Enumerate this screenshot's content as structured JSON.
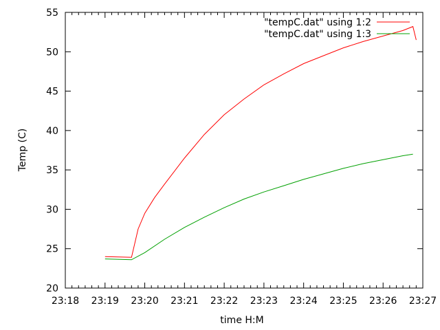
{
  "chart_data": {
    "type": "line",
    "title": "",
    "xlabel": "time H:M",
    "ylabel": "Temp (C)",
    "xlim": [
      "23:18",
      "23:27"
    ],
    "ylim": [
      20,
      55
    ],
    "xticks": [
      "23:18",
      "23:19",
      "23:20",
      "23:21",
      "23:22",
      "23:23",
      "23:24",
      "23:25",
      "23:26",
      "23:27"
    ],
    "yticks": [
      20,
      25,
      30,
      35,
      40,
      45,
      50,
      55
    ],
    "grid": false,
    "legend_position": "top-right",
    "series": [
      {
        "name": "\"tempC.dat\" using 1:2",
        "color": "#ff0000",
        "x": [
          "23:19:00",
          "23:19:40",
          "23:19:50",
          "23:20:00",
          "23:20:15",
          "23:20:30",
          "23:21:00",
          "23:21:30",
          "23:22:00",
          "23:22:30",
          "23:23:00",
          "23:23:30",
          "23:24:00",
          "23:24:30",
          "23:25:00",
          "23:25:30",
          "23:26:00",
          "23:26:30",
          "23:26:45",
          "23:26:50"
        ],
        "values": [
          24.0,
          23.9,
          27.5,
          29.5,
          31.5,
          33.2,
          36.5,
          39.5,
          42.0,
          44.0,
          45.8,
          47.2,
          48.5,
          49.5,
          50.5,
          51.3,
          52.0,
          52.7,
          53.2,
          51.5
        ]
      },
      {
        "name": "\"tempC.dat\" using 1:3",
        "color": "#00a000",
        "x": [
          "23:19:00",
          "23:19:40",
          "23:20:00",
          "23:20:30",
          "23:21:00",
          "23:21:30",
          "23:22:00",
          "23:22:30",
          "23:23:00",
          "23:23:30",
          "23:24:00",
          "23:24:30",
          "23:25:00",
          "23:25:30",
          "23:26:00",
          "23:26:30",
          "23:26:45"
        ],
        "values": [
          23.7,
          23.6,
          24.5,
          26.2,
          27.7,
          29.0,
          30.2,
          31.3,
          32.2,
          33.0,
          33.8,
          34.5,
          35.2,
          35.8,
          36.3,
          36.8,
          37.0
        ]
      }
    ]
  }
}
